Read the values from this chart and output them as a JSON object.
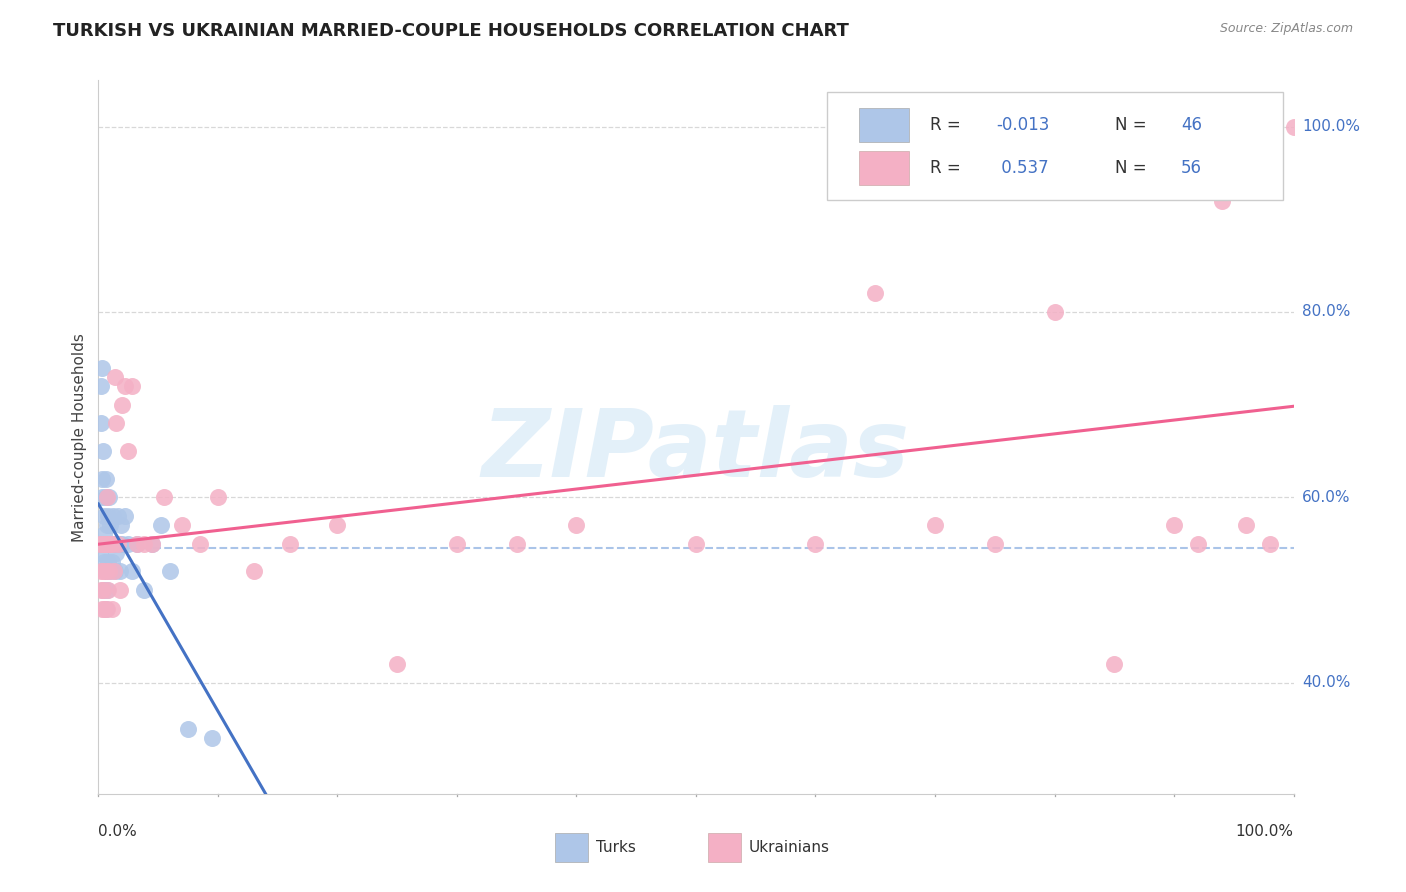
{
  "title": "TURKISH VS UKRAINIAN MARRIED-COUPLE HOUSEHOLDS CORRELATION CHART",
  "source": "Source: ZipAtlas.com",
  "ylabel": "Married-couple Households",
  "ytick_labels": [
    "40.0%",
    "60.0%",
    "80.0%",
    "100.0%"
  ],
  "ytick_values": [
    0.4,
    0.6,
    0.8,
    1.0
  ],
  "turks_color": "#aec6e8",
  "turks_edge_color": "#7ba7d4",
  "ukrainians_color": "#f4b0c5",
  "ukrainians_edge_color": "#e08098",
  "turks_line_color": "#4472c4",
  "ukrainians_line_color": "#f06090",
  "dashed_line_color": "#aac4e8",
  "dashed_line_y": 0.545,
  "watermark": "ZIPatlas",
  "background_color": "#ffffff",
  "turks_x": [
    0.001,
    0.002,
    0.002,
    0.003,
    0.003,
    0.003,
    0.004,
    0.004,
    0.004,
    0.005,
    0.005,
    0.005,
    0.006,
    0.006,
    0.006,
    0.006,
    0.007,
    0.007,
    0.007,
    0.008,
    0.008,
    0.009,
    0.009,
    0.01,
    0.01,
    0.011,
    0.011,
    0.012,
    0.013,
    0.014,
    0.015,
    0.016,
    0.017,
    0.018,
    0.019,
    0.02,
    0.022,
    0.025,
    0.028,
    0.032,
    0.038,
    0.045,
    0.052,
    0.06,
    0.075,
    0.095
  ],
  "turks_y": [
    0.54,
    0.72,
    0.68,
    0.62,
    0.74,
    0.6,
    0.55,
    0.5,
    0.65,
    0.58,
    0.53,
    0.56,
    0.48,
    0.62,
    0.52,
    0.6,
    0.55,
    0.57,
    0.5,
    0.53,
    0.58,
    0.55,
    0.6,
    0.52,
    0.57,
    0.53,
    0.55,
    0.58,
    0.55,
    0.52,
    0.54,
    0.58,
    0.55,
    0.52,
    0.57,
    0.55,
    0.58,
    0.55,
    0.52,
    0.55,
    0.5,
    0.55,
    0.57,
    0.52,
    0.35,
    0.34
  ],
  "ukrainians_x": [
    0.001,
    0.002,
    0.002,
    0.003,
    0.003,
    0.004,
    0.004,
    0.005,
    0.005,
    0.006,
    0.006,
    0.007,
    0.007,
    0.008,
    0.008,
    0.009,
    0.01,
    0.011,
    0.012,
    0.013,
    0.014,
    0.015,
    0.016,
    0.018,
    0.02,
    0.022,
    0.025,
    0.028,
    0.032,
    0.038,
    0.045,
    0.055,
    0.07,
    0.085,
    0.1,
    0.13,
    0.16,
    0.2,
    0.25,
    0.3,
    0.35,
    0.4,
    0.5,
    0.6,
    0.65,
    0.7,
    0.75,
    0.8,
    0.85,
    0.88,
    0.9,
    0.92,
    0.94,
    0.96,
    0.98,
    1.0
  ],
  "ukrainians_y": [
    0.55,
    0.5,
    0.52,
    0.48,
    0.55,
    0.52,
    0.5,
    0.55,
    0.48,
    0.55,
    0.52,
    0.48,
    0.6,
    0.55,
    0.5,
    0.52,
    0.55,
    0.48,
    0.55,
    0.52,
    0.73,
    0.68,
    0.55,
    0.5,
    0.7,
    0.72,
    0.65,
    0.72,
    0.55,
    0.55,
    0.55,
    0.6,
    0.57,
    0.55,
    0.6,
    0.52,
    0.55,
    0.57,
    0.42,
    0.55,
    0.55,
    0.57,
    0.55,
    0.55,
    0.82,
    0.57,
    0.55,
    0.8,
    0.42,
    1.0,
    0.57,
    0.55,
    0.92,
    0.57,
    0.55,
    1.0
  ]
}
